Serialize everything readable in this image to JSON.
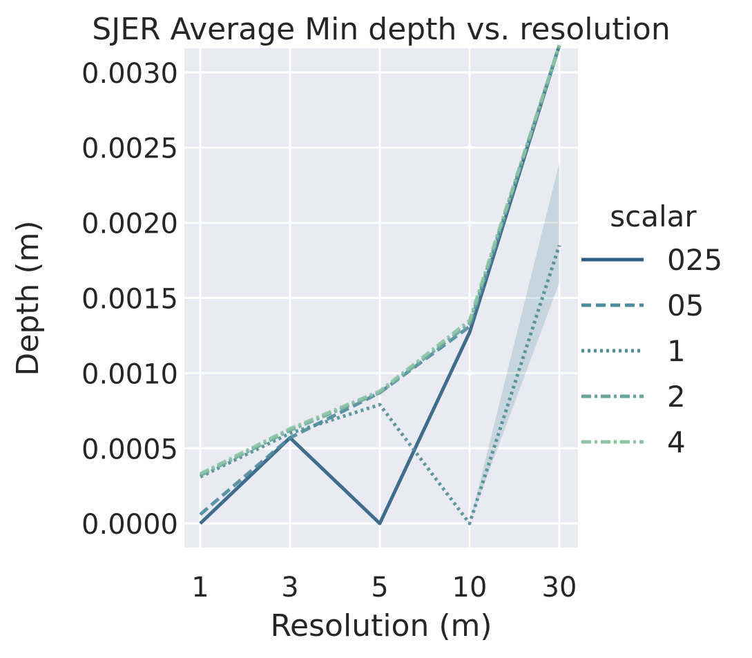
{
  "chart_data": {
    "type": "line",
    "title": "SJER Average Min depth vs. resolution",
    "xlabel": "Resolution (m)",
    "ylabel": "Depth (m)",
    "categories": [
      "1",
      "3",
      "5",
      "10",
      "30"
    ],
    "ylim": [
      -0.00016,
      0.00316
    ],
    "yticks": [
      "0.0000",
      "0.0005",
      "0.0010",
      "0.0015",
      "0.0020",
      "0.0025",
      "0.0030"
    ],
    "ytick_values": [
      0.0,
      0.0005,
      0.001,
      0.0015,
      0.002,
      0.0025,
      0.003
    ],
    "grid": true,
    "legend": {
      "title": "scalar",
      "position": "right"
    },
    "series": [
      {
        "name": "025",
        "values": [
          0.0,
          0.00057,
          0.0,
          0.00127,
          0.00318
        ],
        "color": "#2c5f80",
        "dash": "solid"
      },
      {
        "name": "05",
        "values": [
          6e-05,
          0.00057,
          0.00087,
          0.00131,
          0.00318
        ],
        "color": "#4e8b9c",
        "dash": "dashed"
      },
      {
        "name": "1",
        "values": [
          0.00031,
          0.0006,
          0.00079,
          0.0,
          0.00185
        ],
        "color": "#4f8e95",
        "dash": "dotted",
        "ci_lower": [
          null,
          null,
          null,
          0.0,
          0.0016
        ],
        "ci_upper": [
          null,
          null,
          null,
          0.0,
          0.0024
        ]
      },
      {
        "name": "2",
        "values": [
          0.00032,
          0.00062,
          0.00087,
          0.00133,
          0.00318
        ],
        "color": "#6aa69a",
        "dash": "dashdot"
      },
      {
        "name": "4",
        "values": [
          0.00033,
          0.00063,
          0.00088,
          0.00135,
          0.00318
        ],
        "color": "#8cc5a4",
        "dash": "dashdot"
      }
    ]
  }
}
